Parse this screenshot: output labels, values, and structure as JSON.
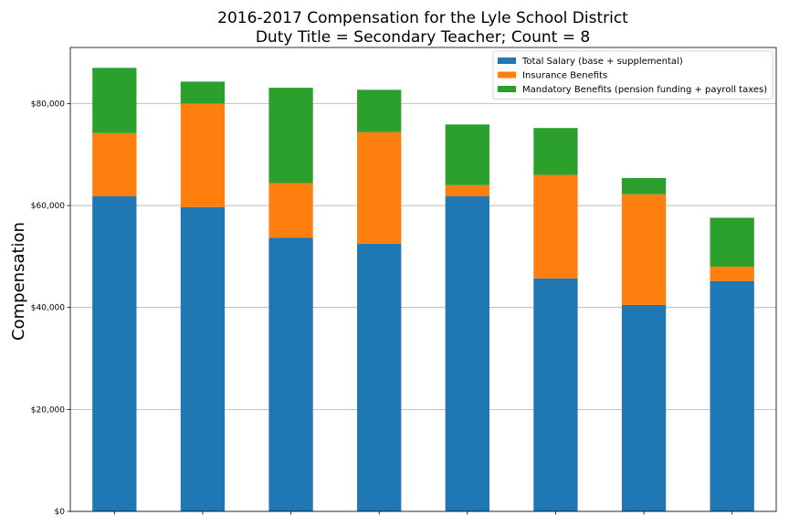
{
  "chart_data": {
    "type": "bar",
    "stacked": true,
    "title": "2016-2017 Compensation for the Lyle School District",
    "subtitle": "Duty Title = Secondary Teacher; Count = 8",
    "xlabel": "",
    "ylabel": "Compensation",
    "categories": [
      "",
      "",
      "",
      "",
      "",
      "",
      "",
      ""
    ],
    "ylim": [
      0,
      91000
    ],
    "yticks": [
      0,
      20000,
      40000,
      60000,
      80000
    ],
    "ytick_labels": [
      "$0",
      "$20,000",
      "$40,000",
      "$60,000",
      "$80,000"
    ],
    "grid": "y",
    "legend_position": "top-right",
    "series": [
      {
        "name": "Total Salary (base + supplemental)",
        "color": "#1f77b4",
        "values": [
          61800,
          59700,
          53700,
          52500,
          61800,
          45700,
          40500,
          45200
        ]
      },
      {
        "name": "Insurance Benefits",
        "color": "#ff7f0e",
        "values": [
          12400,
          20300,
          10700,
          21900,
          2200,
          20300,
          21700,
          2800
        ]
      },
      {
        "name": "Mandatory Benefits (pension funding + payroll taxes)",
        "color": "#2ca02c",
        "values": [
          12800,
          4300,
          18700,
          8300,
          11900,
          9200,
          3200,
          9600
        ]
      }
    ]
  }
}
